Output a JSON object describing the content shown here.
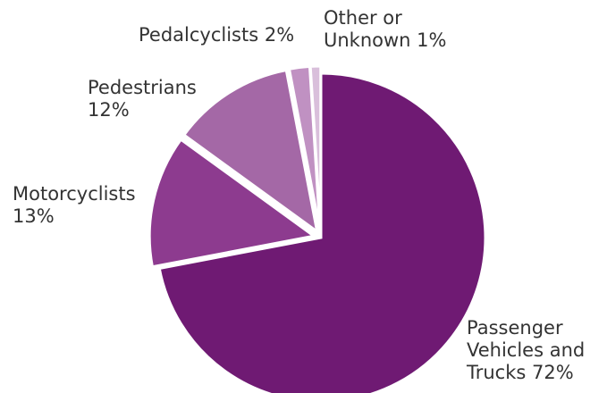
{
  "chart_data": {
    "type": "pie",
    "title": "",
    "slices": [
      {
        "label": "Passenger Vehicles and Trucks",
        "value": 72,
        "value_text": "72%",
        "color": "#6f1a73"
      },
      {
        "label": "Motorcyclists",
        "value": 13,
        "value_text": "13%",
        "color": "#8d3b8f"
      },
      {
        "label": "Pedestrians",
        "value": 12,
        "value_text": "12%",
        "color": "#a468a6"
      },
      {
        "label": "Pedalcyclists",
        "value": 2,
        "value_text": "2%",
        "color": "#c091c2"
      },
      {
        "label": "Other or Unknown",
        "value": 1,
        "value_text": "1%",
        "color": "#d9bfdb"
      }
    ],
    "exploded": [
      "Motorcyclists",
      "Pedestrians",
      "Pedalcyclists",
      "Other or Unknown"
    ],
    "legend": "none",
    "labels": {
      "passenger": [
        "Passenger",
        "Vehicles and",
        "Trucks 72%"
      ],
      "motorcyclists": [
        "Motorcyclists",
        "13%"
      ],
      "pedestrians": [
        "Pedestrians",
        "12%"
      ],
      "pedalcyclists": [
        "Pedalcyclists 2%"
      ],
      "other": [
        "Other or",
        "Unknown 1%"
      ]
    }
  }
}
